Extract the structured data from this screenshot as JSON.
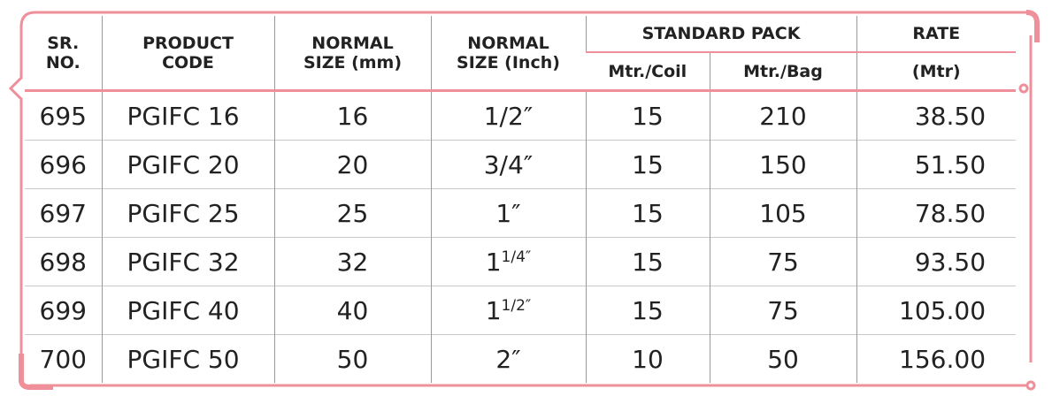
{
  "header": {
    "sr_no": "SR. NO.",
    "product_code": "PRODUCT CODE",
    "size_mm": "NORMAL SIZE (mm)",
    "size_inch": "NORMAL SIZE (Inch)",
    "standard_pack": "STANDARD PACK",
    "mtr_coil": "Mtr./Coil",
    "mtr_bag": "Mtr./Bag",
    "rate": "RATE",
    "rate_unit": "(Mtr)"
  },
  "table": {
    "rows": [
      [
        "695",
        "PGIFC 16",
        "16",
        {
          "whole": "1/2″"
        },
        "15",
        "210",
        "38.50"
      ],
      [
        "696",
        "PGIFC 20",
        "20",
        {
          "whole": "3/4″"
        },
        "15",
        "150",
        "51.50"
      ],
      [
        "697",
        "PGIFC 25",
        "25",
        {
          "whole": "1″"
        },
        "15",
        "105",
        "78.50"
      ],
      [
        "698",
        "PGIFC 32",
        "32",
        {
          "whole": "1",
          "fraction": "1/4″"
        },
        "15",
        "75",
        "93.50"
      ],
      [
        "699",
        "PGIFC 40",
        "40",
        {
          "whole": "1",
          "fraction": "1/2″"
        },
        "15",
        "75",
        "105.00"
      ],
      [
        "700",
        "PGIFC 50",
        "50",
        {
          "whole": "2″"
        },
        "10",
        "50",
        "156.00"
      ]
    ]
  }
}
